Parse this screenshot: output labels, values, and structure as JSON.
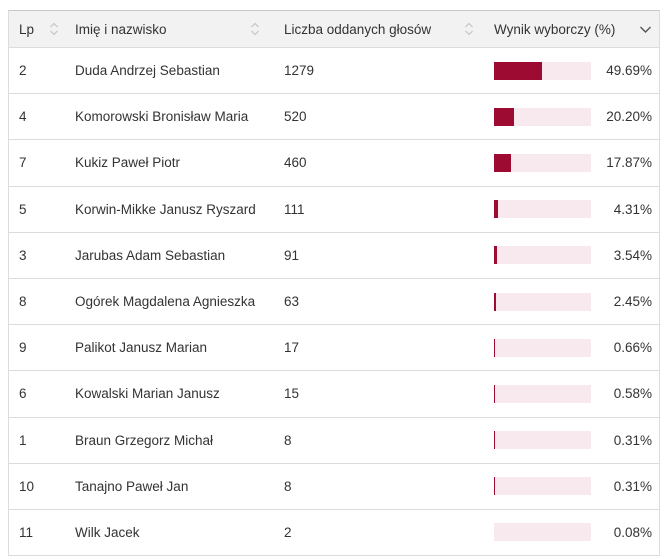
{
  "table": {
    "columns": [
      {
        "label": "Lp",
        "icon": "sort-both-icon",
        "sorted": false
      },
      {
        "label": "Imię i nazwisko",
        "icon": "sort-both-icon",
        "sorted": false
      },
      {
        "label": "Liczba oddanych głosów",
        "icon": "sort-both-icon",
        "sorted": false
      },
      {
        "label": "Wynik wyborczy (%)",
        "icon": "sort-desc-icon",
        "sorted": true
      }
    ],
    "rows": [
      {
        "lp": "2",
        "name": "Duda Andrzej Sebastian",
        "votes": "1279",
        "percent": 49.69,
        "percent_label": "49.69%"
      },
      {
        "lp": "4",
        "name": "Komorowski Bronisław Maria",
        "votes": "520",
        "percent": 20.2,
        "percent_label": "20.20%"
      },
      {
        "lp": "7",
        "name": "Kukiz Paweł Piotr",
        "votes": "460",
        "percent": 17.87,
        "percent_label": "17.87%"
      },
      {
        "lp": "5",
        "name": "Korwin-Mikke Janusz Ryszard",
        "votes": "111",
        "percent": 4.31,
        "percent_label": "4.31%"
      },
      {
        "lp": "3",
        "name": "Jarubas Adam Sebastian",
        "votes": "91",
        "percent": 3.54,
        "percent_label": "3.54%"
      },
      {
        "lp": "8",
        "name": "Ogórek Magdalena Agnieszka",
        "votes": "63",
        "percent": 2.45,
        "percent_label": "2.45%"
      },
      {
        "lp": "9",
        "name": "Palikot Janusz Marian",
        "votes": "17",
        "percent": 0.66,
        "percent_label": "0.66%"
      },
      {
        "lp": "6",
        "name": "Kowalski Marian Janusz",
        "votes": "15",
        "percent": 0.58,
        "percent_label": "0.58%"
      },
      {
        "lp": "1",
        "name": "Braun Grzegorz Michał",
        "votes": "8",
        "percent": 0.31,
        "percent_label": "0.31%"
      },
      {
        "lp": "10",
        "name": "Tanajno Paweł Jan",
        "votes": "8",
        "percent": 0.31,
        "percent_label": "0.31%"
      },
      {
        "lp": "11",
        "name": "Wilk Jacek",
        "votes": "2",
        "percent": 0.08,
        "percent_label": "0.08%"
      }
    ]
  },
  "chart_data": {
    "type": "table",
    "columns": [
      "Lp",
      "Imię i nazwisko",
      "Liczba oddanych głosów",
      "Wynik wyborczy (%)"
    ],
    "rows": [
      [
        2,
        "Duda Andrzej Sebastian",
        1279,
        49.69
      ],
      [
        4,
        "Komorowski Bronisław Maria",
        520,
        20.2
      ],
      [
        7,
        "Kukiz Paweł Piotr",
        460,
        17.87
      ],
      [
        5,
        "Korwin-Mikke Janusz Ryszard",
        111,
        4.31
      ],
      [
        3,
        "Jarubas Adam Sebastian",
        91,
        3.54
      ],
      [
        8,
        "Ogórek Magdalena Agnieszka",
        63,
        2.45
      ],
      [
        9,
        "Palikot Janusz Marian",
        17,
        0.66
      ],
      [
        6,
        "Kowalski Marian Janusz",
        15,
        0.58
      ],
      [
        1,
        "Braun Grzegorz Michał",
        8,
        0.31
      ],
      [
        10,
        "Tanajno Paweł Jan",
        8,
        0.31
      ],
      [
        11,
        "Wilk Jacek",
        2,
        0.08
      ]
    ],
    "bar_column": "Wynik wyborczy (%)",
    "bar_range": [
      0,
      100
    ],
    "sorted_by": "Wynik wyborczy (%)",
    "sort_direction": "desc"
  },
  "colors": {
    "bar_fill": "#9e0b32",
    "bar_background": "#f7e9ee",
    "header_background": "#f2f2f2",
    "row_border": "#dcdcdc",
    "text": "#333333"
  }
}
